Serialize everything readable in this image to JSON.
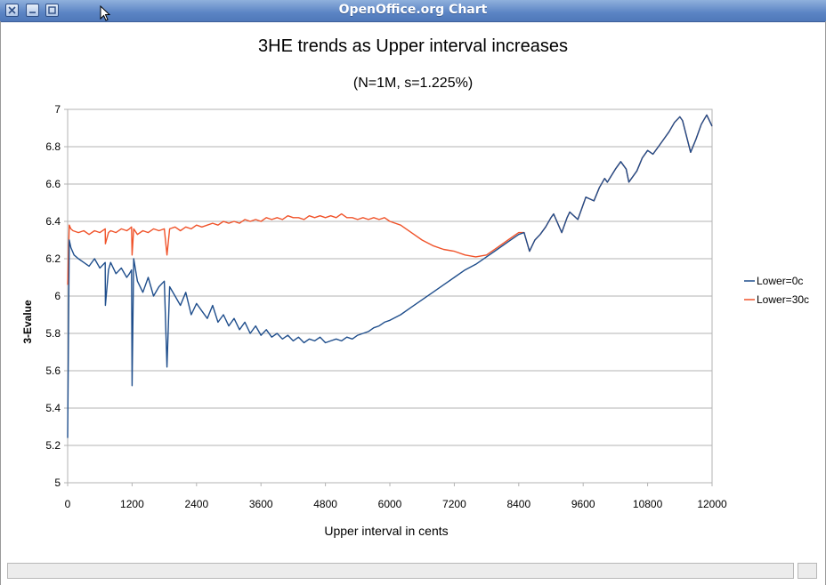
{
  "window": {
    "title": "OpenOffice.org Chart"
  },
  "icons": {
    "close": "close-icon",
    "minimize": "minimize-icon",
    "maximize": "maximize-icon",
    "cursor": "mouse-pointer-icon"
  },
  "chart_data": {
    "type": "line",
    "title": "3HE trends as Upper interval increases",
    "subtitle": "(N=1M, s=1.225%)",
    "xlabel": "Upper interval in cents",
    "ylabel": "3-Evalue",
    "xlim": [
      0,
      12000
    ],
    "ylim": [
      5,
      7
    ],
    "xticks": [
      "0",
      "1200",
      "2400",
      "3600",
      "4800",
      "6000",
      "7200",
      "8400",
      "9600",
      "10800",
      "12000"
    ],
    "yticks": [
      "5",
      "5.2",
      "5.4",
      "5.6",
      "5.8",
      "6",
      "6.2",
      "6.4",
      "6.6",
      "6.8",
      "7"
    ],
    "grid": "horizontal",
    "legend_position": "right",
    "colors": {
      "Lower=0c": "#1f4e8c",
      "Lower=30c": "#f0532a"
    },
    "series": [
      {
        "name": "Lower=0c",
        "x": [
          0,
          30,
          60,
          120,
          200,
          300,
          400,
          500,
          600,
          700,
          702,
          760,
          800,
          900,
          1000,
          1100,
          1150,
          1190,
          1200,
          1230,
          1300,
          1400,
          1500,
          1600,
          1700,
          1800,
          1850,
          1900,
          2000,
          2100,
          2200,
          2300,
          2400,
          2500,
          2600,
          2700,
          2800,
          2900,
          3000,
          3100,
          3200,
          3300,
          3400,
          3500,
          3600,
          3700,
          3800,
          3900,
          4000,
          4100,
          4200,
          4300,
          4400,
          4500,
          4600,
          4700,
          4800,
          4900,
          5000,
          5100,
          5200,
          5300,
          5400,
          5500,
          5600,
          5700,
          5800,
          5900,
          6000,
          6200,
          6400,
          6600,
          6800,
          7000,
          7200,
          7400,
          7600,
          7800,
          8000,
          8200,
          8400,
          8500,
          8600,
          8700,
          8800,
          8900,
          9000,
          9050,
          9200,
          9300,
          9350,
          9500,
          9600,
          9650,
          9800,
          9900,
          10000,
          10050,
          10200,
          10300,
          10400,
          10450,
          10600,
          10700,
          10800,
          10900,
          11000,
          11100,
          11200,
          11300,
          11400,
          11450,
          11600,
          11700,
          11800,
          11900,
          12000
        ],
        "values": [
          5.24,
          6.3,
          6.26,
          6.22,
          6.2,
          6.18,
          6.16,
          6.2,
          6.15,
          6.18,
          5.95,
          6.14,
          6.18,
          6.12,
          6.15,
          6.1,
          6.12,
          6.14,
          5.52,
          6.2,
          6.08,
          6.02,
          6.1,
          6.0,
          6.05,
          6.08,
          5.62,
          6.05,
          6.0,
          5.95,
          6.02,
          5.9,
          5.96,
          5.92,
          5.88,
          5.95,
          5.86,
          5.9,
          5.84,
          5.88,
          5.82,
          5.86,
          5.8,
          5.84,
          5.79,
          5.82,
          5.78,
          5.8,
          5.77,
          5.79,
          5.76,
          5.78,
          5.75,
          5.77,
          5.76,
          5.78,
          5.75,
          5.76,
          5.77,
          5.76,
          5.78,
          5.77,
          5.79,
          5.8,
          5.81,
          5.83,
          5.84,
          5.86,
          5.87,
          5.9,
          5.94,
          5.98,
          6.02,
          6.06,
          6.1,
          6.14,
          6.17,
          6.21,
          6.25,
          6.29,
          6.33,
          6.34,
          6.24,
          6.3,
          6.33,
          6.37,
          6.42,
          6.44,
          6.34,
          6.42,
          6.45,
          6.41,
          6.49,
          6.53,
          6.51,
          6.58,
          6.63,
          6.61,
          6.68,
          6.72,
          6.68,
          6.61,
          6.67,
          6.74,
          6.78,
          6.76,
          6.8,
          6.84,
          6.88,
          6.93,
          6.96,
          6.94,
          6.77,
          6.84,
          6.92,
          6.97,
          6.91
        ]
      },
      {
        "name": "Lower=30c",
        "x": [
          0,
          30,
          60,
          100,
          200,
          300,
          400,
          500,
          600,
          700,
          702,
          760,
          800,
          900,
          1000,
          1100,
          1150,
          1190,
          1200,
          1230,
          1300,
          1400,
          1500,
          1600,
          1700,
          1800,
          1850,
          1900,
          2000,
          2100,
          2200,
          2300,
          2400,
          2500,
          2600,
          2700,
          2800,
          2900,
          3000,
          3100,
          3200,
          3300,
          3400,
          3500,
          3600,
          3700,
          3800,
          3900,
          4000,
          4100,
          4200,
          4300,
          4400,
          4500,
          4600,
          4700,
          4800,
          4900,
          5000,
          5100,
          5200,
          5300,
          5400,
          5500,
          5600,
          5700,
          5800,
          5900,
          6000,
          6200,
          6400,
          6600,
          6800,
          7000,
          7200,
          7400,
          7600,
          7800,
          8000,
          8200,
          8400,
          8500,
          8600,
          8700,
          8800,
          8900,
          9000,
          9050,
          9200,
          9300,
          9350,
          9500,
          9600,
          9650,
          9800,
          9900,
          10000,
          10050,
          10200,
          10300,
          10400,
          10450,
          10600,
          10700,
          10800,
          10900,
          11000,
          11100,
          11200,
          11300,
          11400,
          11450,
          11600,
          11700,
          11800,
          11900,
          12000
        ],
        "values": [
          6.06,
          6.38,
          6.36,
          6.35,
          6.34,
          6.35,
          6.33,
          6.35,
          6.34,
          6.36,
          6.28,
          6.34,
          6.35,
          6.34,
          6.36,
          6.35,
          6.36,
          6.37,
          6.22,
          6.36,
          6.33,
          6.35,
          6.34,
          6.36,
          6.35,
          6.36,
          6.22,
          6.36,
          6.37,
          6.35,
          6.37,
          6.36,
          6.38,
          6.37,
          6.38,
          6.39,
          6.38,
          6.4,
          6.39,
          6.4,
          6.39,
          6.41,
          6.4,
          6.41,
          6.4,
          6.42,
          6.41,
          6.42,
          6.41,
          6.43,
          6.42,
          6.42,
          6.41,
          6.43,
          6.42,
          6.43,
          6.42,
          6.43,
          6.42,
          6.44,
          6.42,
          6.42,
          6.41,
          6.42,
          6.41,
          6.42,
          6.41,
          6.42,
          6.4,
          6.38,
          6.34,
          6.3,
          6.27,
          6.25,
          6.24,
          6.22,
          6.21,
          6.22,
          6.26,
          6.3,
          6.34,
          6.34,
          6.24,
          6.3,
          6.33,
          6.37,
          6.42,
          6.44,
          6.34,
          6.42,
          6.45,
          6.41,
          6.49,
          6.53,
          6.51,
          6.58,
          6.63,
          6.61,
          6.68,
          6.72,
          6.68,
          6.61,
          6.67,
          6.74,
          6.78,
          6.76,
          6.8,
          6.84,
          6.88,
          6.93,
          6.96,
          6.94,
          6.77,
          6.84,
          6.92,
          6.97,
          6.91
        ]
      }
    ]
  }
}
